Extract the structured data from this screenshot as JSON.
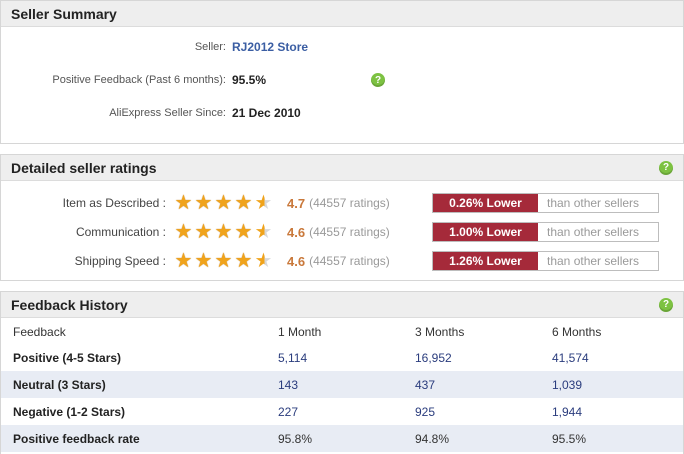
{
  "seller_summary": {
    "title": "Seller Summary",
    "seller_label": "Seller:",
    "seller_name": "RJ2012 Store",
    "positive_label": "Positive Feedback (Past 6 months):",
    "positive_value": "95.5%",
    "since_label": "AliExpress Seller Since:",
    "since_value": "21 Dec 2010",
    "help_icon": "?"
  },
  "ratings": {
    "title": "Detailed seller ratings",
    "help_icon": "?",
    "comparison_suffix": "than other sellers",
    "rows": [
      {
        "label": "Item as Described :",
        "score": "4.7",
        "count": "(44557 ratings)",
        "stars": 4.7,
        "badge": "0.26% Lower",
        "suffix": "than other sellers"
      },
      {
        "label": "Communication :",
        "score": "4.6",
        "count": "(44557 ratings)",
        "stars": 4.6,
        "badge": "1.00% Lower",
        "suffix": "than other sellers"
      },
      {
        "label": "Shipping Speed :",
        "score": "4.6",
        "count": "(44557 ratings)",
        "stars": 4.6,
        "badge": "1.26% Lower",
        "suffix": "than other sellers"
      }
    ],
    "colors": {
      "star": "#f0a31b",
      "badge": "#a52a3a",
      "score": "#c9783a"
    }
  },
  "feedback_history": {
    "title": "Feedback History",
    "help_icon": "?",
    "columns": [
      "Feedback",
      "1 Month",
      "3 Months",
      "6 Months"
    ],
    "rows": [
      {
        "label": "Positive (4-5 Stars)",
        "m1": "5,114",
        "m3": "16,952",
        "m6": "41,574"
      },
      {
        "label": "Neutral (3 Stars)",
        "m1": "143",
        "m3": "437",
        "m6": "1,039"
      },
      {
        "label": "Negative (1-2 Stars)",
        "m1": "227",
        "m3": "925",
        "m6": "1,944"
      },
      {
        "label": "Positive feedback rate",
        "m1": "95.8%",
        "m3": "94.8%",
        "m6": "95.5%"
      }
    ]
  }
}
